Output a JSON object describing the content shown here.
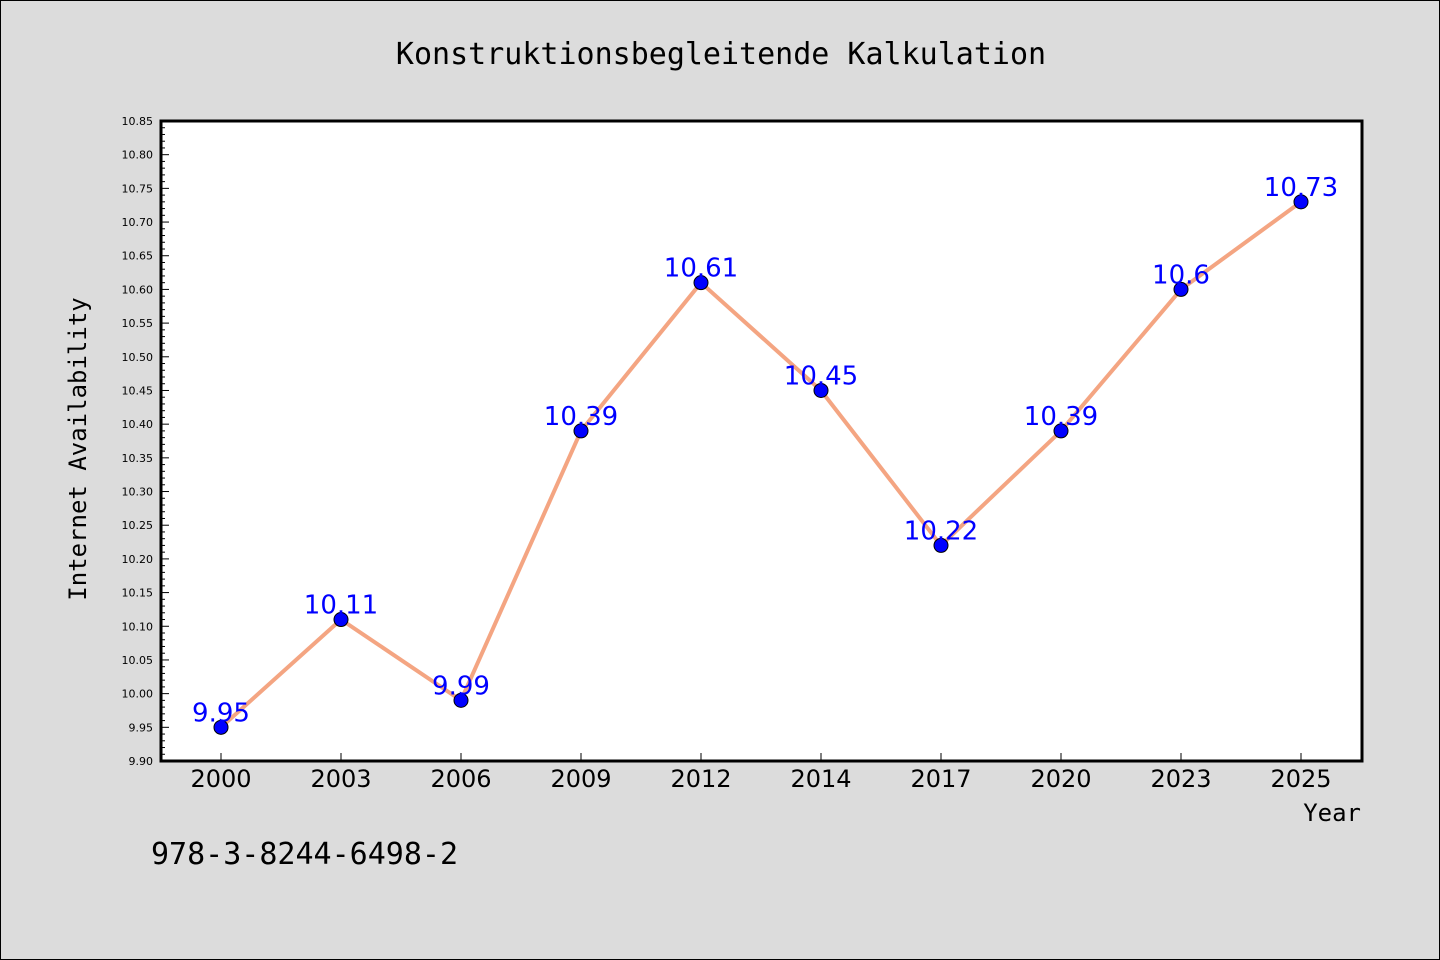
{
  "chart_data": {
    "type": "line",
    "title": "Konstruktionsbegleitende Kalkulation",
    "xlabel": "Year",
    "ylabel": "Internet Availability",
    "categories": [
      "2000",
      "2003",
      "2006",
      "2009",
      "2012",
      "2014",
      "2017",
      "2020",
      "2023",
      "2025"
    ],
    "series": [
      {
        "values": [
          9.95,
          10.11,
          9.99,
          10.39,
          10.61,
          10.45,
          10.22,
          10.39,
          10.6,
          10.73
        ],
        "labels": [
          "9.95",
          "10.11",
          "9.99",
          "10.39",
          "10.61",
          "10.45",
          "10.22",
          "10.39",
          "10.6",
          "10.73"
        ]
      }
    ],
    "ylim": [
      9.9,
      10.85
    ],
    "yticks": [
      "9.90",
      "9.95",
      "10.00",
      "10.05",
      "10.10",
      "10.15",
      "10.20",
      "10.25",
      "10.30",
      "10.35",
      "10.40",
      "10.45",
      "10.50",
      "10.55",
      "10.60",
      "10.65",
      "10.70",
      "10.75",
      "10.80",
      "10.85"
    ],
    "grid": false,
    "legend": "none",
    "colors": {
      "line": "#f4a582",
      "marker": "#0000ff",
      "data_label": "#0000ff",
      "plot_background": "#ffffff",
      "figure_background": "#dcdcdc"
    }
  },
  "footnote": "978-3-8244-6498-2"
}
